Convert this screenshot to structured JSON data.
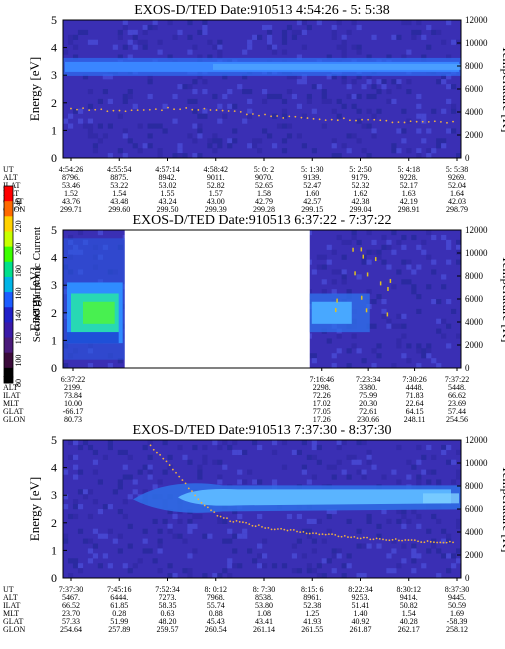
{
  "colorbar": {
    "label": "Second Harmonic Current",
    "ticks": [
      "240",
      "220",
      "200",
      "180",
      "160",
      "140",
      "120",
      "100",
      "80"
    ],
    "colors": [
      "#ff0000",
      "#ff6a00",
      "#ffd200",
      "#c8ff00",
      "#3cff00",
      "#00e08c",
      "#00b4e6",
      "#1c5cff",
      "#2020c8",
      "#3a1aa8",
      "#4a1a7a",
      "#3a0a3a",
      "#000000"
    ]
  },
  "chart_data": [
    {
      "type": "heatmap",
      "title": "EXOS-D/TED    Date:910513   4:54:26 - 5: 5:38",
      "ylabel": "Energy [eV]",
      "y2label": "Temperature [K]",
      "ylim": [
        0,
        5
      ],
      "y2lim": [
        0,
        12000
      ],
      "yticks": [
        "0",
        "1",
        "2",
        "3",
        "4",
        "5"
      ],
      "y2ticks": [
        "0",
        "2000",
        "4000",
        "6000",
        "8000",
        "10000",
        "12000"
      ],
      "band": {
        "center_eV": 3.3,
        "temperature_points_eV": [
          1.8,
          1.75,
          1.7,
          1.72,
          1.8,
          1.78,
          1.75,
          1.6,
          1.5,
          1.45,
          1.4,
          1.4,
          1.35,
          1.3,
          1.3,
          1.28
        ]
      },
      "gap": null,
      "table": {
        "row_labels": [
          "UT",
          "ALT",
          "ILAT",
          "MLT",
          "GLAT",
          "GLON"
        ],
        "columns": [
          [
            "4:54:26",
            "8796.",
            "53.46",
            "1.52",
            "43.76",
            "299.71"
          ],
          [
            "4:55:54",
            "8875.",
            "53.22",
            "1.54",
            "43.48",
            "299.60"
          ],
          [
            "4:57:14",
            "8942.",
            "53.02",
            "1.55",
            "43.24",
            "299.50"
          ],
          [
            "4:58:42",
            "9011.",
            "52.82",
            "1.57",
            "43.00",
            "299.39"
          ],
          [
            "5: 0: 2",
            "9070.",
            "52.65",
            "1.58",
            "42.79",
            "299.28"
          ],
          [
            "5: 1:30",
            "9139.",
            "52.47",
            "1.60",
            "42.57",
            "299.15"
          ],
          [
            "5: 2:50",
            "9179.",
            "52.32",
            "1.62",
            "42.38",
            "299.04"
          ],
          [
            "5: 4:18",
            "9228.",
            "52.17",
            "1.63",
            "42.19",
            "298.91"
          ],
          [
            "5: 5:38",
            "9269.",
            "52.04",
            "1.64",
            "42.03",
            "298.79"
          ]
        ]
      }
    },
    {
      "type": "heatmap",
      "title": "EXOS-D/TED    Date:910513   6:37:22 - 7:37:22",
      "ylabel": "Energy [eV]",
      "y2label": "Temperature [K]",
      "ylim": [
        0,
        5
      ],
      "y2lim": [
        0,
        12000
      ],
      "yticks": [
        "0",
        "1",
        "2",
        "3",
        "4",
        "5"
      ],
      "y2ticks": [
        "0",
        "2000",
        "4000",
        "6000",
        "8000",
        "10000",
        "12000"
      ],
      "band": {
        "center_eV": 2.0,
        "temperature_points_eV": []
      },
      "gap": [
        0.155,
        0.62
      ],
      "table": {
        "row_labels": [
          "UT",
          "ALT",
          "ILAT",
          "MLT",
          "GLAT",
          "GLON"
        ],
        "columns": [
          [
            "6:37:22",
            "2199.",
            "73.84",
            "10.00",
            "-66.17",
            "80.73"
          ],
          [
            "7:16:46",
            "2298.",
            "72.26",
            "17.02",
            "77.05",
            "17.26"
          ],
          [
            "7:23:34",
            "3380.",
            "75.99",
            "20.30",
            "72.61",
            "230.66"
          ],
          [
            "7:30:26",
            "4448.",
            "71.83",
            "22.64",
            "64.15",
            "248.11"
          ],
          [
            "7:37:22",
            "5448.",
            "66.62",
            "23.69",
            "57.44",
            "254.56"
          ]
        ]
      }
    },
    {
      "type": "heatmap",
      "title": "EXOS-D/TED    Date:910513   7:37:30 - 8:37:30",
      "ylabel": "Energy [eV]",
      "y2label": "Temperature [K]",
      "ylim": [
        0,
        5
      ],
      "y2lim": [
        0,
        12000
      ],
      "yticks": [
        "0",
        "1",
        "2",
        "3",
        "4",
        "5"
      ],
      "y2ticks": [
        "0",
        "2000",
        "4000",
        "6000",
        "8000",
        "10000",
        "12000"
      ],
      "band": {
        "center_eV": 2.85,
        "temperature_points_eV": [
          4.8,
          4.3,
          3.8,
          3.2,
          2.7,
          2.3,
          2.1,
          2.0,
          1.9,
          1.8,
          1.75,
          1.7,
          1.65,
          1.6,
          1.55,
          1.5,
          1.45,
          1.42,
          1.4,
          1.38,
          1.35,
          1.33,
          1.3,
          1.3
        ]
      },
      "gap": null,
      "table": {
        "row_labels": [
          "UT",
          "ALT",
          "ILAT",
          "MLT",
          "GLAT",
          "GLON"
        ],
        "columns": [
          [
            "7:37:30",
            "5467.",
            "66.52",
            "23.70",
            "57.33",
            "254.64"
          ],
          [
            "7:45:16",
            "6444.",
            "61.85",
            "0.28",
            "51.99",
            "257.89"
          ],
          [
            "7:52:34",
            "7273.",
            "58.35",
            "0.63",
            "48.20",
            "259.57"
          ],
          [
            "8: 0:12",
            "7968.",
            "55.74",
            "0.88",
            "45.43",
            "260.54"
          ],
          [
            "8: 7:30",
            "8538.",
            "53.80",
            "1.08",
            "43.41",
            "261.14"
          ],
          [
            "8:15: 6",
            "8961.",
            "52.38",
            "1.25",
            "41.93",
            "261.55"
          ],
          [
            "8:22:34",
            "9253.",
            "51.41",
            "1.40",
            "40.92",
            "261.87"
          ],
          [
            "8:30:12",
            "9414.",
            "50.82",
            "1.54",
            "40.28",
            "262.17"
          ],
          [
            "8:37:30",
            "9445.",
            "50.59",
            "1.69",
            "-58.39",
            "258.12"
          ]
        ]
      }
    }
  ]
}
